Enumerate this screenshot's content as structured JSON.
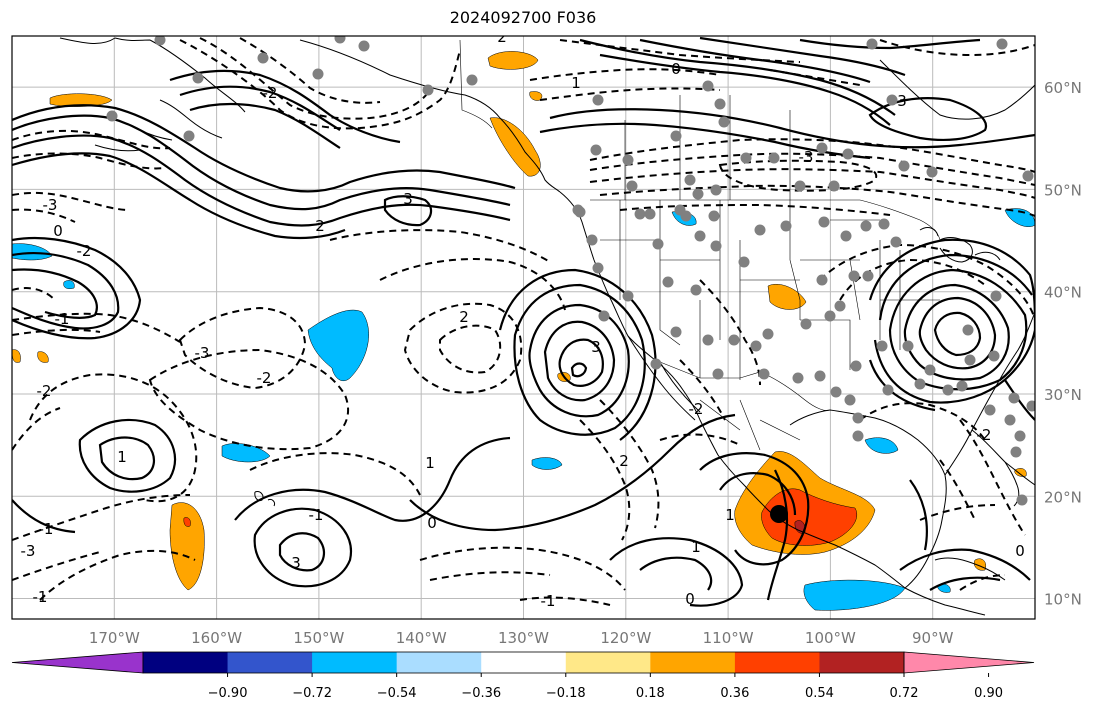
{
  "title": "2024092700 F036",
  "map": {
    "projection": "PlateCarree",
    "lon_range": [
      -180,
      -80
    ],
    "lat_range": [
      8,
      65
    ],
    "lon_ticks": [
      "170°W",
      "160°W",
      "150°W",
      "140°W",
      "130°W",
      "120°W",
      "110°W",
      "100°W",
      "90°W"
    ],
    "lat_ticks": [
      "10°N",
      "20°N",
      "30°N",
      "40°N",
      "50°N",
      "60°N"
    ],
    "grid": true,
    "marker_color": "#000000",
    "station_color": "#808080"
  },
  "contour_labels": [
    "2",
    "1",
    "0",
    "-3",
    "3",
    "2",
    "-2",
    "0",
    "-1",
    "-2",
    "3",
    "-3",
    "2",
    "-1",
    "-2",
    "-3",
    "1",
    "-1",
    "1",
    "0",
    "-2",
    "-1",
    "0",
    "2",
    "1",
    "-2",
    "1",
    "0",
    "-1",
    "-3",
    "3",
    "-2",
    "3"
  ],
  "colorbar": {
    "colors": [
      "#9933cc",
      "#000080",
      "#3355cc",
      "#00bbff",
      "#aaddff",
      "#ffffff",
      "#ffe888",
      "#ffa500",
      "#ff4000",
      "#b22222",
      "#ff88aa"
    ],
    "ticks": [
      "−0.90",
      "−0.72",
      "−0.54",
      "−0.36",
      "−0.18",
      "0.18",
      "0.36",
      "0.54",
      "0.72",
      "0.90"
    ]
  }
}
